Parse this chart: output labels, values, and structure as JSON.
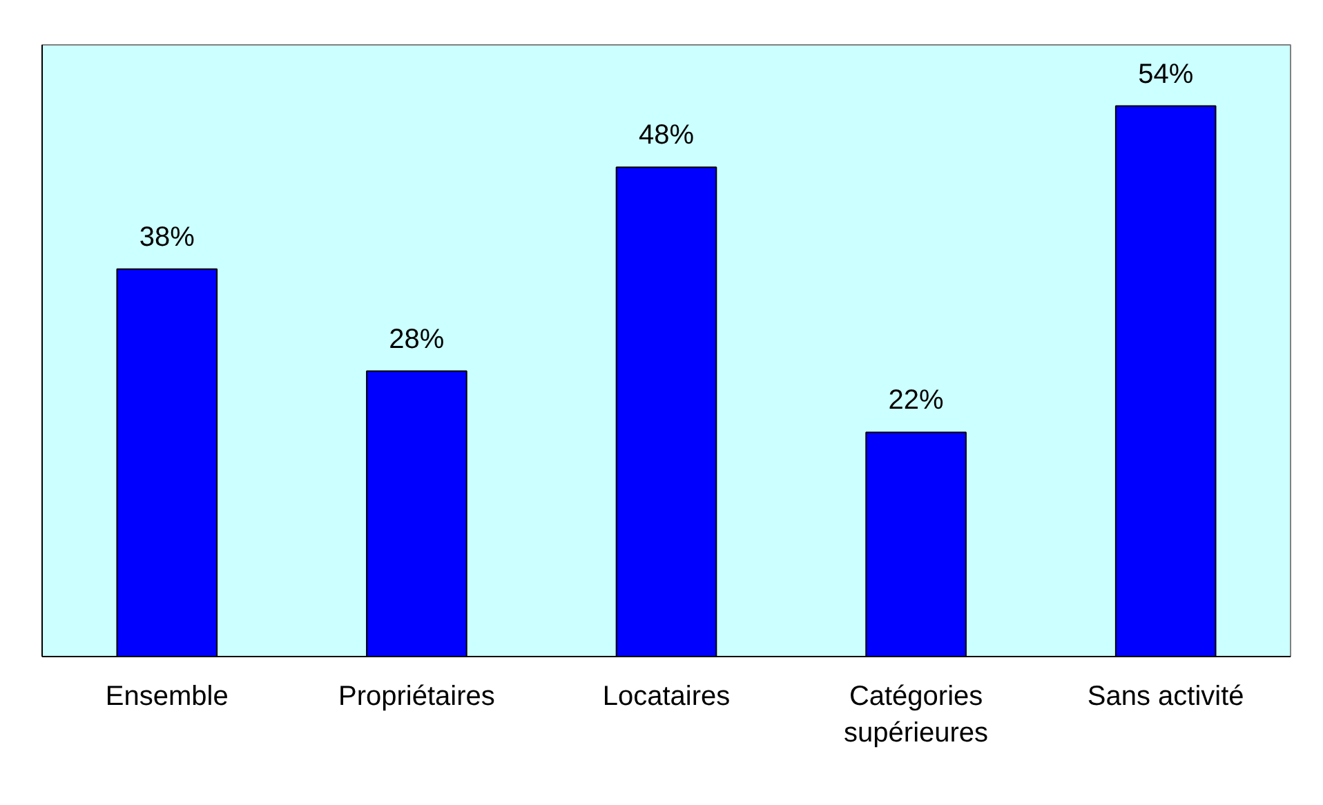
{
  "chart_data": {
    "type": "bar",
    "categories": [
      "Ensemble",
      "Propriétaires",
      "Locataires",
      "Catégories\nsupérieures",
      "Sans activité"
    ],
    "values": [
      38,
      28,
      48,
      22,
      54
    ],
    "color": "#0000ff",
    "ylim": [
      0,
      60
    ],
    "data_labels": true,
    "value_labels": [
      "38%",
      "28%",
      "48%",
      "22%",
      "54%"
    ],
    "grid": false
  }
}
